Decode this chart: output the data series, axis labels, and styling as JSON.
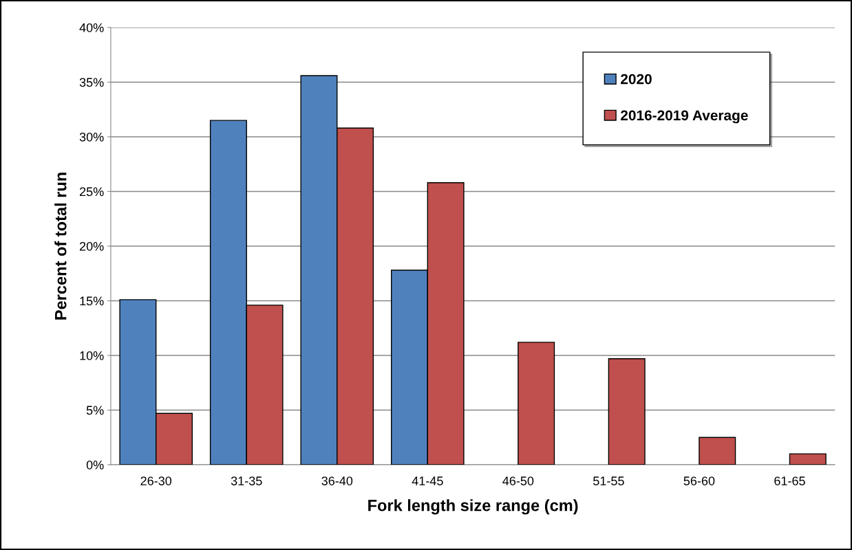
{
  "chart_data": {
    "type": "bar",
    "xlabel": "Fork length size range (cm)",
    "ylabel": "Percent of total run",
    "categories": [
      "26-30",
      "31-35",
      "36-40",
      "41-45",
      "46-50",
      "51-55",
      "56-60",
      "61-65"
    ],
    "series": [
      {
        "name": "2020",
        "color": "#4f81bd",
        "values": [
          15.1,
          31.5,
          35.6,
          17.8,
          null,
          null,
          null,
          null
        ]
      },
      {
        "name": "2016-2019 Average",
        "color": "#c0504d",
        "values": [
          4.7,
          14.6,
          30.8,
          25.8,
          11.2,
          9.7,
          2.5,
          1.0
        ]
      }
    ],
    "ylim": [
      0,
      40
    ],
    "yticks": [
      {
        "value": 0,
        "label": "0%"
      },
      {
        "value": 5,
        "label": "5%"
      },
      {
        "value": 10,
        "label": "10%"
      },
      {
        "value": 15,
        "label": "15%"
      },
      {
        "value": 20,
        "label": "20%"
      },
      {
        "value": 25,
        "label": "25%"
      },
      {
        "value": 30,
        "label": "30%"
      },
      {
        "value": 35,
        "label": "35%"
      },
      {
        "value": 40,
        "label": "40%"
      }
    ],
    "grid": "y",
    "legend": "top right"
  }
}
